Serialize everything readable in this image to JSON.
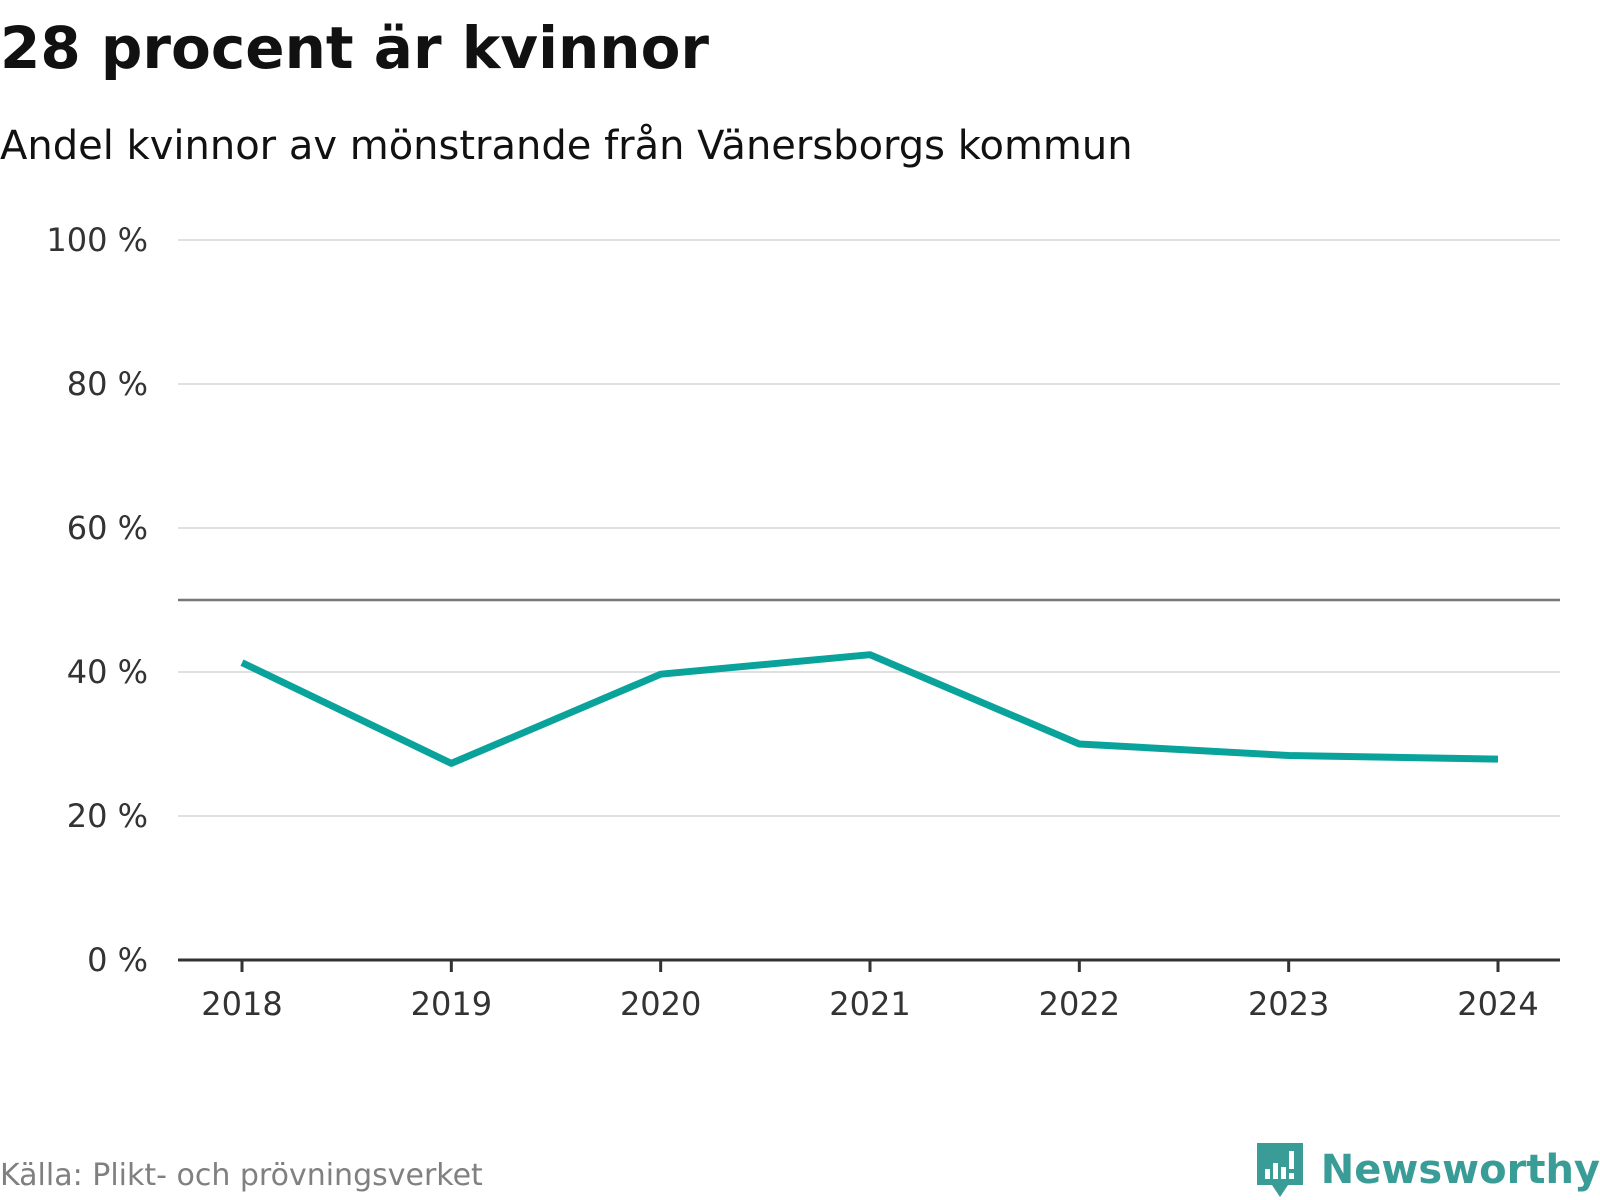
{
  "header": {
    "title": "28 procent är kvinnor",
    "subtitle": "Andel kvinnor av mönstrande från Vänersborgs kommun"
  },
  "footer": {
    "source": "Källa: Plikt- och prövningsverket",
    "brand": "Newsworthy"
  },
  "colors": {
    "line": "#0aa39b",
    "grid": "#e0e0e0",
    "axis": "#333333",
    "reference": "#777777",
    "brand": "#3a9c96",
    "source_text": "#808080"
  },
  "chart_data": {
    "type": "line",
    "title": "28 procent är kvinnor",
    "subtitle": "Andel kvinnor av mönstrande från Vänersborgs kommun",
    "xlabel": "",
    "ylabel": "",
    "categories": [
      "2018",
      "2019",
      "2020",
      "2021",
      "2022",
      "2023",
      "2024"
    ],
    "series": [
      {
        "name": "Andel kvinnor",
        "values": [
          41.3,
          27.3,
          39.7,
          42.4,
          30.0,
          28.4,
          27.9
        ]
      }
    ],
    "ylim": [
      0,
      100
    ],
    "yticks": [
      0,
      20,
      40,
      60,
      80,
      100
    ],
    "ytick_labels": [
      "0 %",
      "20 %",
      "40 %",
      "60 %",
      "80 %",
      "100 %"
    ],
    "reference_line": 50,
    "grid": true,
    "legend": "none"
  }
}
